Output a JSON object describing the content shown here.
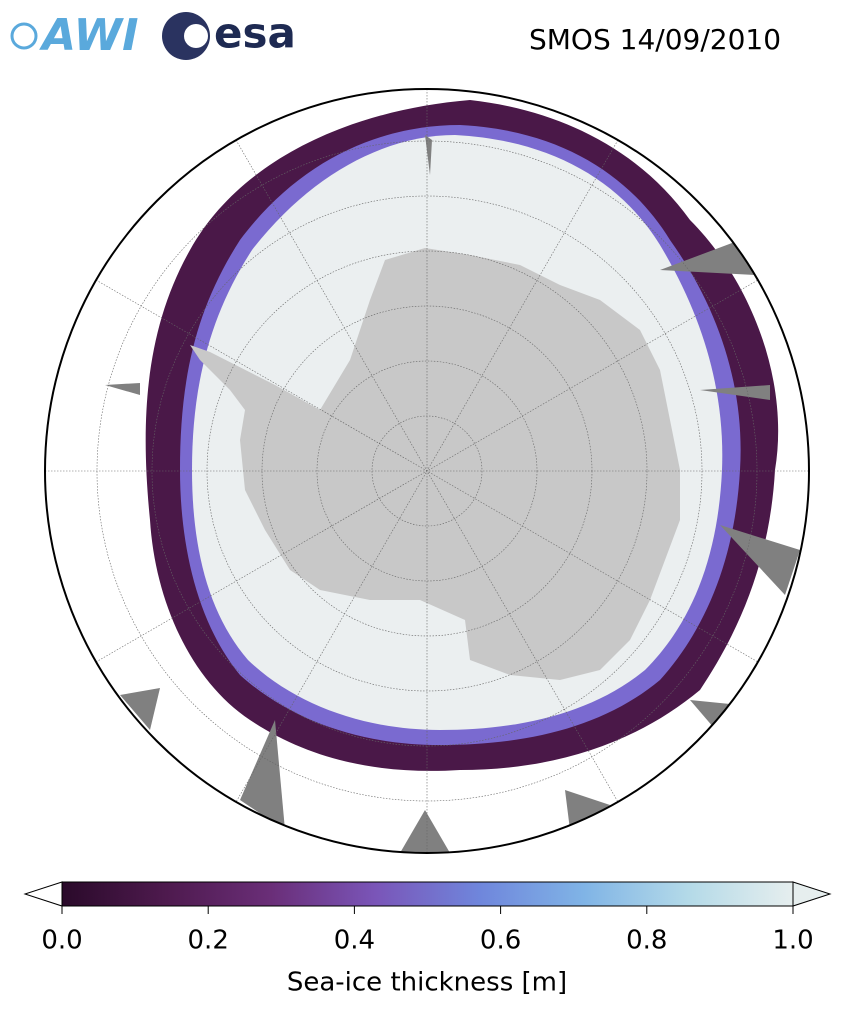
{
  "header": {
    "logo_awi": "AWI",
    "logo_esa": "esa",
    "title": "SMOS 14/09/2010"
  },
  "colorbar": {
    "label": "Sea-ice thickness [m]",
    "lim": [
      0,
      1
    ],
    "ticks": [
      {
        "value": 0,
        "label": "0.0"
      },
      0.2,
      0.4,
      0.6,
      0.8,
      {
        "value": 1,
        "label": "1.0"
      }
    ],
    "colors": [
      "#2a0a2a",
      "#4e1a4e",
      "#6a2e78",
      "#7a55b8",
      "#6f86dc",
      "#80b4e6",
      "#b4dae8",
      "#e6eeee"
    ],
    "under_color": "#ffffff",
    "over_color": "#e6eeee"
  }
}
